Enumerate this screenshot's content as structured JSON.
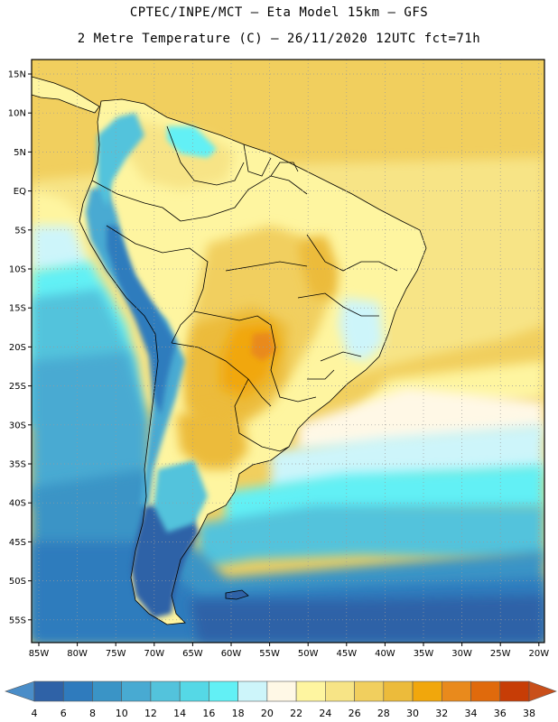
{
  "header": {
    "line1": "CPTEC/INPE/MCT –  Eta Model 15km – GFS",
    "line2": "2 Metre Temperature (C) – 26/11/2020 12UTC fct=71h"
  },
  "map": {
    "lat_labels": [
      "15N",
      "10N",
      "5N",
      "EQ",
      "5S",
      "10S",
      "15S",
      "20S",
      "25S",
      "30S",
      "35S",
      "40S",
      "45S",
      "50S",
      "55S"
    ],
    "lon_labels": [
      "85W",
      "80W",
      "75W",
      "70W",
      "65W",
      "60W",
      "55W",
      "50W",
      "45W",
      "40W",
      "35W",
      "30W",
      "25W",
      "20W"
    ]
  },
  "colorbar": {
    "ticks": [
      "4",
      "6",
      "8",
      "10",
      "12",
      "14",
      "16",
      "18",
      "20",
      "22",
      "24",
      "26",
      "28",
      "30",
      "32",
      "34",
      "36",
      "38"
    ],
    "colors": [
      "#2f62a7",
      "#2f7bbd",
      "#3a94c6",
      "#48aad2",
      "#53c3dc",
      "#55d8e6",
      "#62f0f5",
      "#cdf5fa",
      "#fff8e6",
      "#fef5a0",
      "#f7e486",
      "#f1cf5e",
      "#ecbb3b",
      "#f1a70c",
      "#e98a1c",
      "#e06a0c",
      "#c73d06",
      "#4a8dc8",
      "#c94f1a"
    ]
  }
}
